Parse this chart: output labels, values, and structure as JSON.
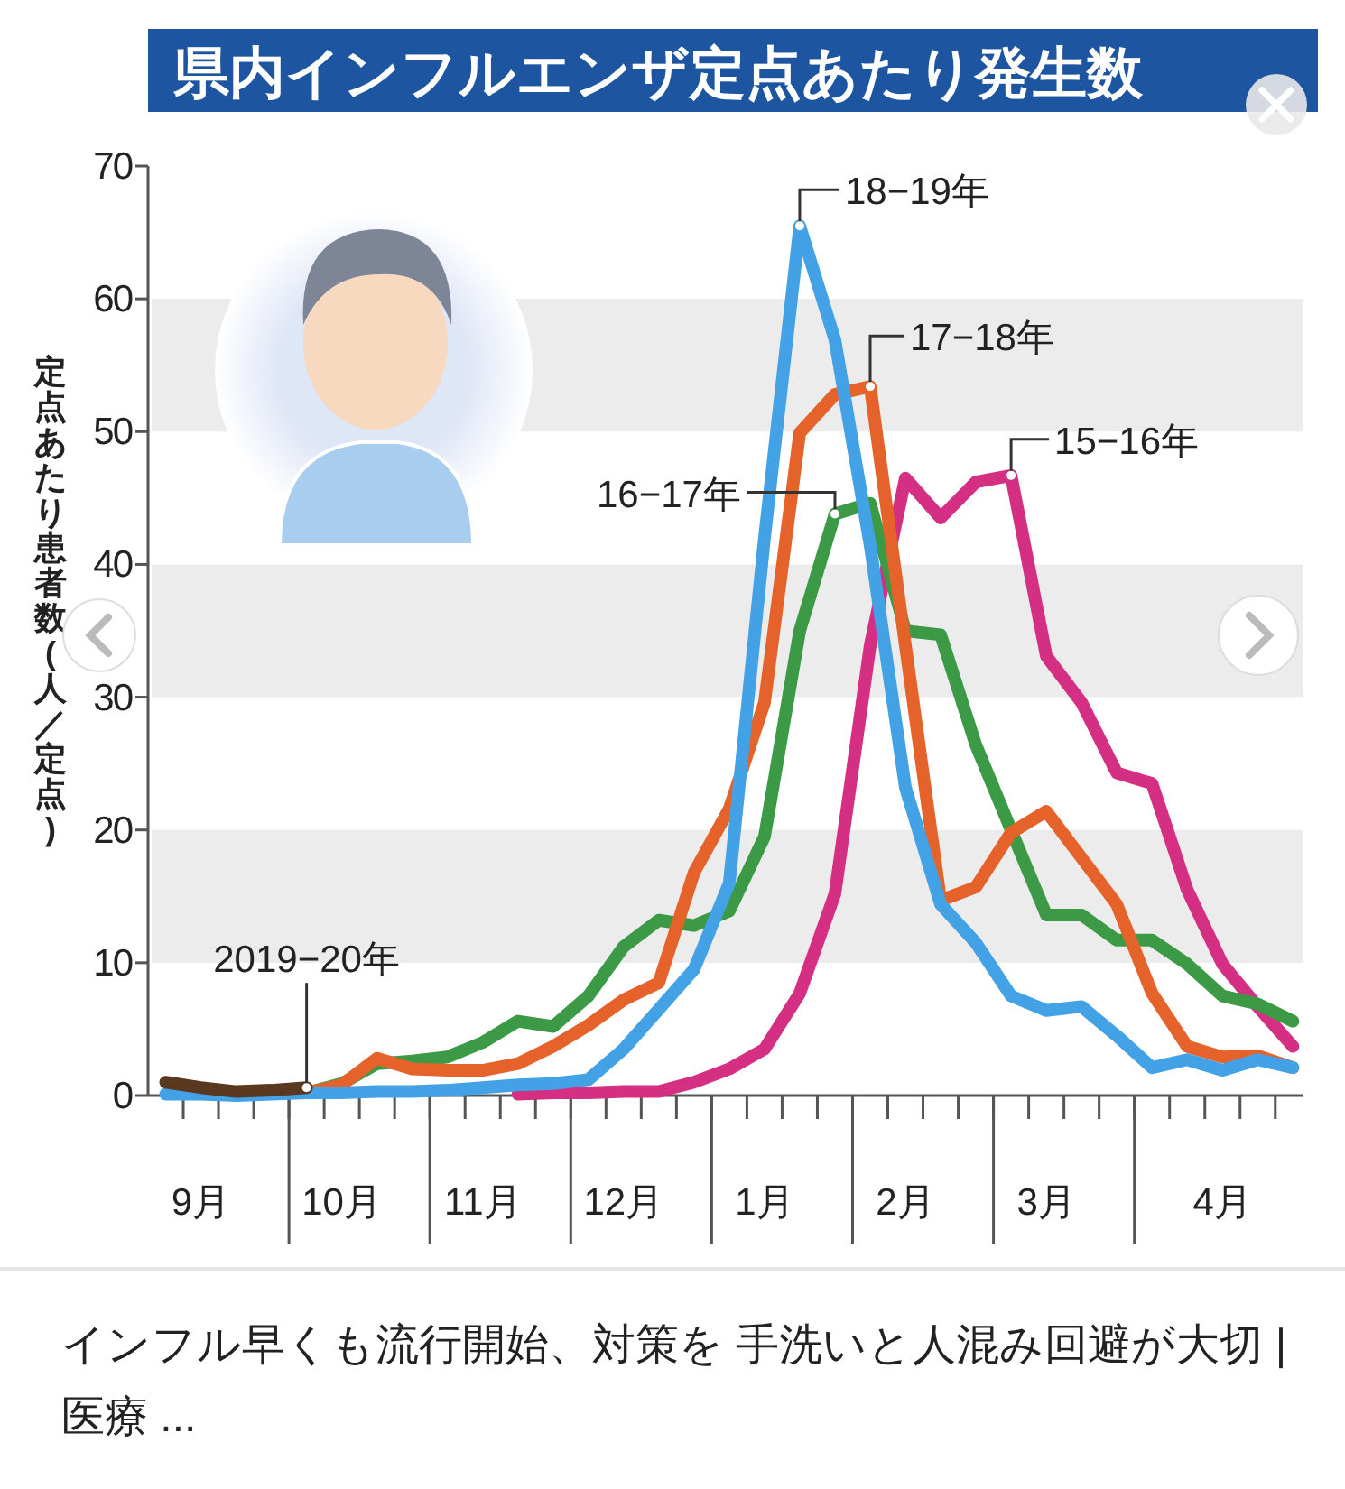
{
  "chart_data": {
    "type": "line",
    "title": "県内インフルエンザ定点あたり発生数",
    "ylabel": "定点あたり患者数(人／定点)",
    "categories": [
      null,
      "9月",
      null,
      null,
      null,
      "10月",
      null,
      null,
      null,
      "11月",
      null,
      null,
      null,
      "12月",
      null,
      null,
      null,
      "1月",
      null,
      null,
      null,
      "2月",
      null,
      null,
      null,
      "3月",
      null,
      null,
      null,
      null,
      "4月",
      null,
      null
    ],
    "ylim": [
      0,
      70
    ],
    "yticks": [
      0,
      10,
      20,
      30,
      40,
      50,
      60,
      70
    ],
    "bands": [
      {
        "axis": "y",
        "from": 10,
        "to": 20,
        "color": "#ececec"
      },
      {
        "axis": "y",
        "from": 30,
        "to": 40,
        "color": "#ececec"
      },
      {
        "axis": "y",
        "from": 50,
        "to": 60,
        "color": "#ececec"
      }
    ],
    "grid": false,
    "legend": false,
    "series": [
      {
        "name": "15−16年",
        "color": "#d42f82",
        "values": [
          null,
          null,
          null,
          null,
          null,
          null,
          null,
          null,
          null,
          null,
          0.1,
          0.2,
          0.2,
          0.3,
          0.3,
          1.0,
          2.0,
          3.5,
          7.7,
          15.2,
          33.9,
          46.5,
          43.5,
          46.2,
          46.7,
          33.1,
          29.6,
          24.3,
          23.5,
          15.5,
          9.9,
          6.7,
          3.7
        ]
      },
      {
        "name": "16−17年",
        "color": "#3c9a46",
        "values": [
          null,
          null,
          null,
          null,
          0.2,
          0.9,
          2.4,
          2.6,
          2.9,
          4.0,
          5.6,
          5.2,
          7.5,
          11.2,
          13.2,
          12.8,
          13.9,
          19.5,
          35.0,
          43.8,
          44.6,
          35.0,
          34.7,
          26.4,
          20.0,
          13.6,
          13.6,
          11.7,
          11.7,
          9.9,
          7.5,
          6.9,
          5.6
        ]
      },
      {
        "name": "17−18年",
        "color": "#e5622a",
        "values": [
          null,
          null,
          null,
          null,
          0.2,
          0.8,
          2.8,
          2.0,
          1.9,
          1.9,
          2.4,
          3.7,
          5.3,
          7.2,
          8.5,
          16.8,
          21.6,
          29.6,
          49.9,
          52.8,
          53.4,
          33.9,
          14.7,
          15.7,
          19.8,
          21.4,
          17.9,
          14.4,
          7.7,
          3.7,
          2.9,
          3.0,
          2.1
        ]
      },
      {
        "name": "18−19年",
        "color": "#43a1e6",
        "values": [
          0.1,
          0.1,
          0.0,
          0.1,
          0.2,
          0.2,
          0.3,
          0.3,
          0.4,
          0.6,
          0.8,
          0.9,
          1.2,
          3.5,
          6.5,
          9.5,
          16.0,
          42.0,
          65.5,
          56.9,
          41.4,
          23.2,
          14.4,
          11.5,
          7.5,
          6.4,
          6.7,
          4.5,
          2.1,
          2.7,
          1.9,
          2.7,
          2.1
        ]
      },
      {
        "name": "2019−20年",
        "color": "#5a3820",
        "values": [
          1.0,
          0.6,
          0.3,
          0.4,
          0.6,
          null,
          null,
          null,
          null,
          null,
          null,
          null,
          null,
          null,
          null,
          null,
          null,
          null,
          null,
          null,
          null,
          null,
          null,
          null,
          null,
          null,
          null,
          null,
          null,
          null,
          null,
          null,
          null
        ]
      }
    ],
    "annotations": [
      "インフル早くも流行開始、対策を 手洗いと人混み回避が大切 | 医療 ..."
    ]
  }
}
